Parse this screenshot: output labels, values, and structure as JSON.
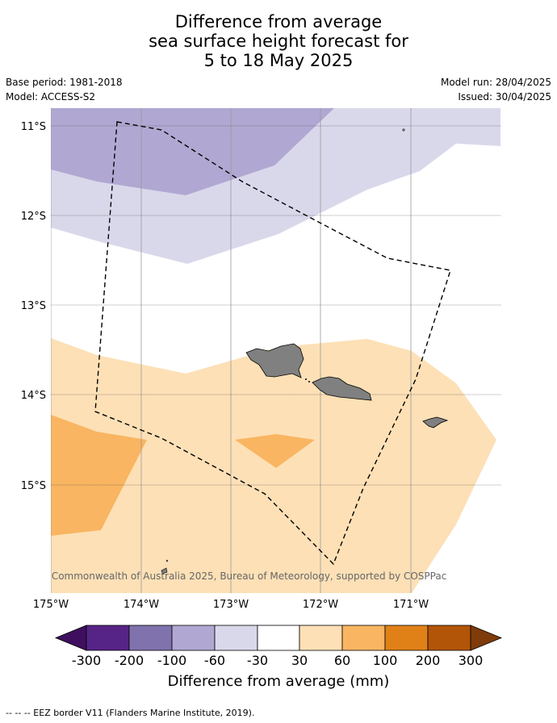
{
  "header": {
    "title_lines": [
      "Difference from average",
      "sea surface height forecast for",
      "5 to 18 May 2025"
    ],
    "base_period": "Base period: 1981-2018",
    "model": "Model: ACCESS-S2",
    "model_run": "Model run: 28/04/2025",
    "issued": "Issued: 30/04/2025"
  },
  "map": {
    "lat_labels": [
      "11°S",
      "12°S",
      "13°S",
      "14°S",
      "15°S"
    ],
    "lon_labels": [
      "175°W",
      "174°W",
      "173°W",
      "172°W",
      "171°W"
    ],
    "copyright": "© Commonwealth of Australia 2025, Bureau of Meteorology, supported by COSPPac",
    "ocean_color": "#ffffff",
    "land_color": "#808080",
    "eez_style": "dashed black"
  },
  "colorbar": {
    "tick_labels": [
      "-300",
      "-200",
      "-100",
      "-60",
      "-30",
      "30",
      "60",
      "100",
      "200",
      "300"
    ],
    "colors": [
      "#3f0f5f",
      "#562487",
      "#8072ad",
      "#b0a8d2",
      "#d9d8eb",
      "#ffffff",
      "#fde0b6",
      "#f9b561",
      "#e08118",
      "#b25508",
      "#7f3c0a"
    ],
    "title": "Difference from average (mm)"
  },
  "footer": {
    "legend": "--  --  -- EEZ border V11 (Flanders Marine Institute, 2019)."
  }
}
